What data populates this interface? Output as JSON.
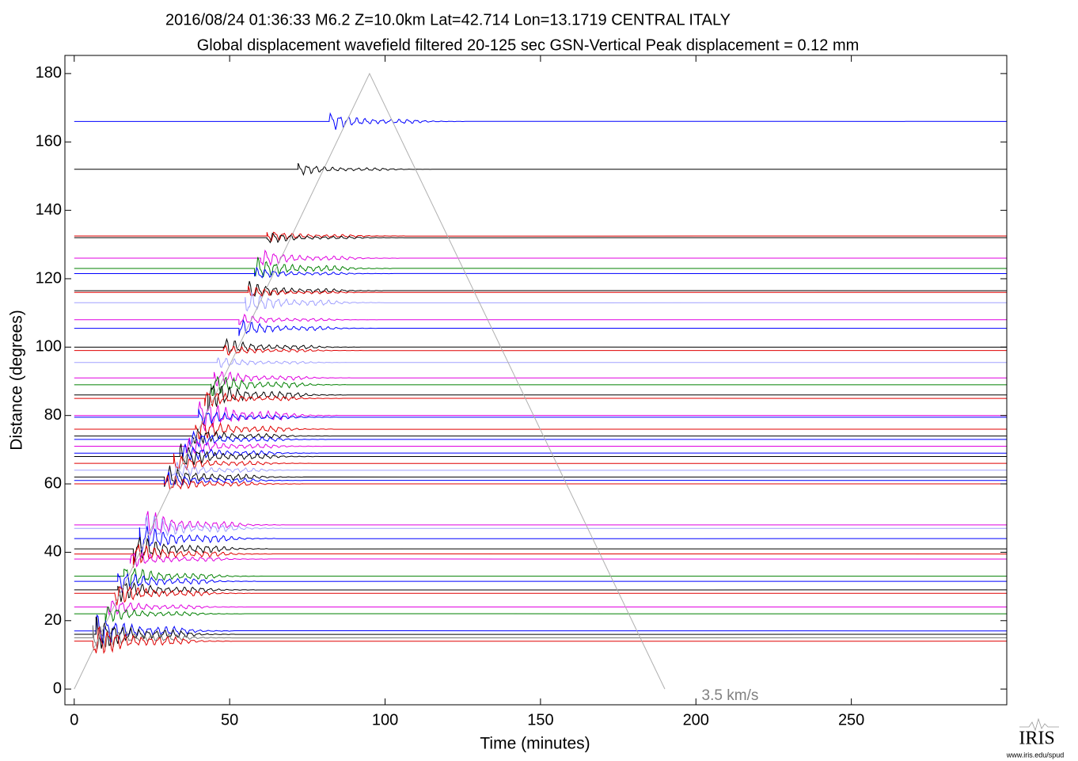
{
  "chart_data": {
    "type": "record-section",
    "title": "2016/08/24  01:36:33  M6.2  Z=10.0km  Lat=42.714 Lon=13.1719  CENTRAL ITALY",
    "subtitle": "Global displacement wavefield     filtered 20-125 sec    GSN-Vertical    Peak displacement = 0.12 mm",
    "xlabel": "Time (minutes)",
    "ylabel": "Distance (degrees)",
    "xlim": [
      -3,
      300
    ],
    "ylim": [
      -4.6,
      185.3
    ],
    "xticks": [
      0,
      50,
      100,
      150,
      200,
      250
    ],
    "yticks": [
      0,
      20,
      40,
      60,
      80,
      100,
      120,
      140,
      160,
      180
    ],
    "reference_line": {
      "label": "3.5 km/s",
      "color": "#b0b0b0",
      "x": [
        0,
        95,
        190
      ],
      "y": [
        0,
        180,
        0
      ],
      "label_x": 211,
      "label_y": -2
    },
    "logo_text": "IRIS",
    "logo_url": "www.iris.edu/spud",
    "traces": [
      {
        "color": "#0000ff",
        "distance": 166,
        "arrival": 82,
        "amplitude": 3
      },
      {
        "color": "#000000",
        "distance": 152,
        "arrival": 72,
        "amplitude": 2
      },
      {
        "color": "#e00000",
        "distance": 132.5,
        "arrival": 62,
        "amplitude": 2
      },
      {
        "color": "#000000",
        "distance": 132,
        "arrival": 62,
        "amplitude": 2
      },
      {
        "color": "#e000e0",
        "distance": 126,
        "arrival": 60,
        "amplitude": 3
      },
      {
        "color": "#008000",
        "distance": 123,
        "arrival": 58,
        "amplitude": 4
      },
      {
        "color": "#0000ff",
        "distance": 121.5,
        "arrival": 58,
        "amplitude": 2
      },
      {
        "color": "#000000",
        "distance": 116.5,
        "arrival": 56,
        "amplitude": 3
      },
      {
        "color": "#e00000",
        "distance": 116,
        "arrival": 56,
        "amplitude": 2
      },
      {
        "color": "#a0a0ff",
        "distance": 113,
        "arrival": 55,
        "amplitude": 4
      },
      {
        "color": "#e000e0",
        "distance": 108,
        "arrival": 53,
        "amplitude": 2
      },
      {
        "color": "#0000ff",
        "distance": 105.5,
        "arrival": 53,
        "amplitude": 3
      },
      {
        "color": "#000000",
        "distance": 100,
        "arrival": 48,
        "amplitude": 3
      },
      {
        "color": "#e00000",
        "distance": 99,
        "arrival": 48,
        "amplitude": 2
      },
      {
        "color": "#a0a0ff",
        "distance": 95.5,
        "arrival": 46,
        "amplitude": 2
      },
      {
        "color": "#e000e0",
        "distance": 91,
        "arrival": 45,
        "amplitude": 3
      },
      {
        "color": "#008000",
        "distance": 89,
        "arrival": 44,
        "amplitude": 4
      },
      {
        "color": "#000000",
        "distance": 86,
        "arrival": 43,
        "amplitude": 5
      },
      {
        "color": "#e00000",
        "distance": 85,
        "arrival": 42,
        "amplitude": 3
      },
      {
        "color": "#e000e0",
        "distance": 80,
        "arrival": 40,
        "amplitude": 6
      },
      {
        "color": "#0000ff",
        "distance": 79.5,
        "arrival": 40,
        "amplitude": 3
      },
      {
        "color": "#e00000",
        "distance": 76,
        "arrival": 39,
        "amplitude": 4
      },
      {
        "color": "#000000",
        "distance": 74,
        "arrival": 38,
        "amplitude": 3
      },
      {
        "color": "#0000ff",
        "distance": 73,
        "arrival": 37,
        "amplitude": 3
      },
      {
        "color": "#e000e0",
        "distance": 71,
        "arrival": 36,
        "amplitude": 3
      },
      {
        "color": "#0000ff",
        "distance": 69,
        "arrival": 35,
        "amplitude": 3
      },
      {
        "color": "#000000",
        "distance": 68,
        "arrival": 34,
        "amplitude": 4
      },
      {
        "color": "#e00000",
        "distance": 66,
        "arrival": 32,
        "amplitude": 3
      },
      {
        "color": "#a0a0ff",
        "distance": 64,
        "arrival": 31,
        "amplitude": 3
      },
      {
        "color": "#000000",
        "distance": 62,
        "arrival": 29,
        "amplitude": 4
      },
      {
        "color": "#0000ff",
        "distance": 61,
        "arrival": 29,
        "amplitude": 3
      },
      {
        "color": "#e00000",
        "distance": 60,
        "arrival": 29,
        "amplitude": 3
      },
      {
        "color": "#e000e0",
        "distance": 48,
        "arrival": 23,
        "amplitude": 5
      },
      {
        "color": "#a0a0ff",
        "distance": 47,
        "arrival": 23,
        "amplitude": 5
      },
      {
        "color": "#0000ff",
        "distance": 44,
        "arrival": 21,
        "amplitude": 5
      },
      {
        "color": "#000000",
        "distance": 41,
        "arrival": 19,
        "amplitude": 5
      },
      {
        "color": "#e00000",
        "distance": 39.5,
        "arrival": 19,
        "amplitude": 4
      },
      {
        "color": "#e000e0",
        "distance": 38,
        "arrival": 18,
        "amplitude": 3
      },
      {
        "color": "#008000",
        "distance": 33,
        "arrival": 16,
        "amplitude": 4
      },
      {
        "color": "#0000ff",
        "distance": 31.5,
        "arrival": 14,
        "amplitude": 4
      },
      {
        "color": "#000000",
        "distance": 29,
        "arrival": 14,
        "amplitude": 4
      },
      {
        "color": "#e00000",
        "distance": 28,
        "arrival": 13,
        "amplitude": 4
      },
      {
        "color": "#e000e0",
        "distance": 24,
        "arrival": 11,
        "amplitude": 3
      },
      {
        "color": "#008000",
        "distance": 22,
        "arrival": 10,
        "amplitude": 3
      },
      {
        "color": "#0000ff",
        "distance": 17,
        "arrival": 7,
        "amplitude": 6
      },
      {
        "color": "#000000",
        "distance": 16,
        "arrival": 7,
        "amplitude": 6
      },
      {
        "color": "#777777",
        "distance": 15,
        "arrival": 6,
        "amplitude": 5
      },
      {
        "color": "#e00000",
        "distance": 14,
        "arrival": 6,
        "amplitude": 6
      }
    ]
  }
}
